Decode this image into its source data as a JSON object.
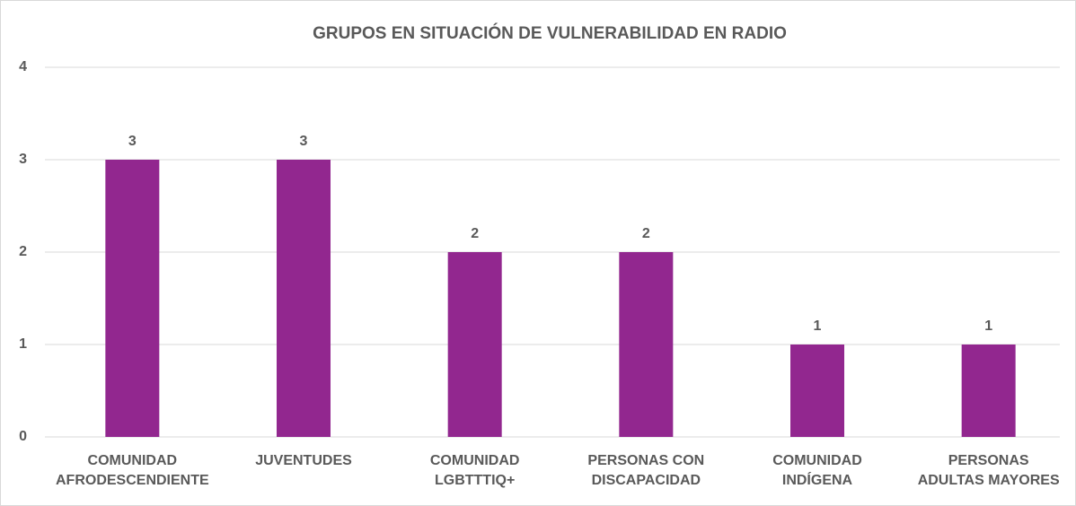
{
  "chart_data": {
    "type": "bar",
    "title": "GRUPOS EN SITUACIÓN DE VULNERABILIDAD EN RADIO",
    "categories": [
      "COMUNIDAD AFRODESCENDIENTE",
      "JUVENTUDES",
      "COMUNIDAD LGBTTTIQ+",
      "PERSONAS CON DISCAPACIDAD",
      "COMUNIDAD INDÍGENA",
      "PERSONAS ADULTAS MAYORES"
    ],
    "values": [
      3,
      3,
      2,
      2,
      1,
      1
    ],
    "color": "#92278f",
    "ylim": [
      0,
      4
    ],
    "yticks": [
      0,
      1,
      2,
      3,
      4
    ],
    "grid": true
  }
}
